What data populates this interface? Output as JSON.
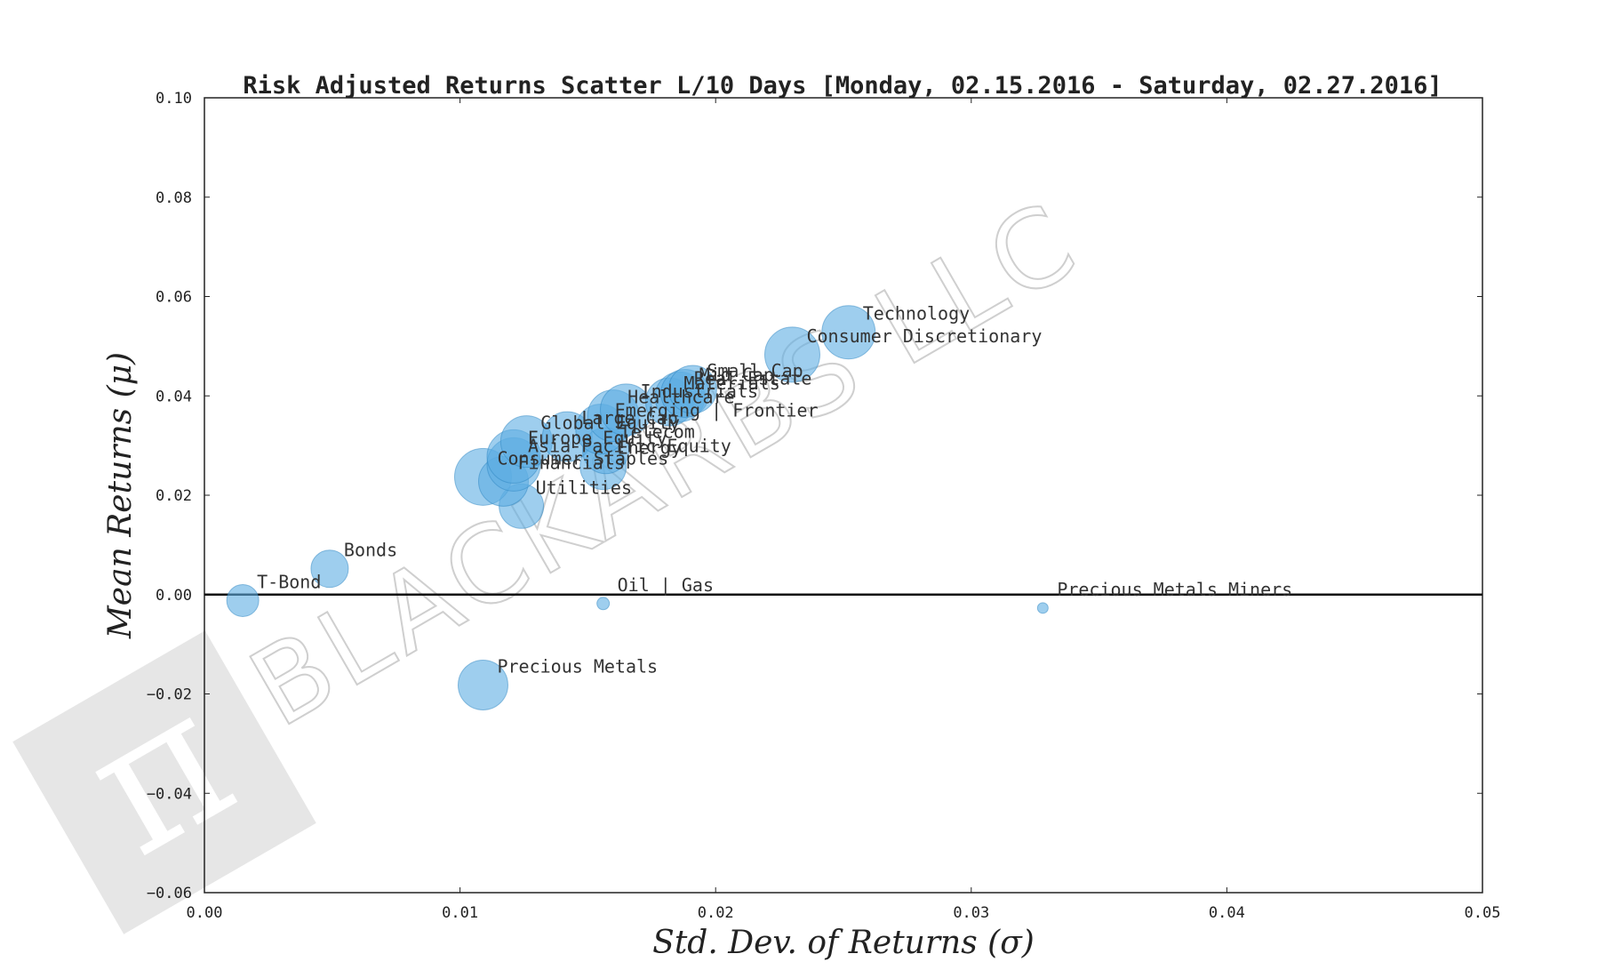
{
  "chart_data": {
    "type": "scatter",
    "title": "Risk Adjusted Returns Scatter L/10 Days [Monday, 02.15.2016 - Saturday, 02.27.2016]",
    "xlabel": "Std.  Dev.  of  Returns   (σ)",
    "ylabel": "Mean  Returns   (μ)",
    "xlim": [
      0.0,
      0.05
    ],
    "ylim": [
      -0.06,
      0.1
    ],
    "xticks": [
      "0.00",
      "0.01",
      "0.02",
      "0.03",
      "0.04",
      "0.05"
    ],
    "yticks": [
      "−0.06",
      "−0.04",
      "−0.02",
      "0.00",
      "0.02",
      "0.04",
      "0.06",
      "0.08",
      "0.10"
    ],
    "zero_line": 0.0,
    "bubble_color": "#5dade2",
    "watermark": "BLACKARBS LLC",
    "points": [
      {
        "label": "T-Bond",
        "x": 0.0015,
        "y": -0.0012,
        "size": 18
      },
      {
        "label": "Bonds",
        "x": 0.0049,
        "y": 0.0052,
        "size": 21
      },
      {
        "label": "Oil | Gas",
        "x": 0.0156,
        "y": -0.0018,
        "size": 7
      },
      {
        "label": "Precious Metals Miners",
        "x": 0.0328,
        "y": -0.0027,
        "size": 6
      },
      {
        "label": "Precious Metals",
        "x": 0.0109,
        "y": -0.0182,
        "size": 28
      },
      {
        "label": "Utilities",
        "x": 0.0124,
        "y": 0.0178,
        "size": 25
      },
      {
        "label": "Consumer Staples",
        "x": 0.0109,
        "y": 0.0237,
        "size": 32
      },
      {
        "label": "Financials",
        "x": 0.0117,
        "y": 0.0228,
        "size": 28
      },
      {
        "label": "Asia-Pacific Equity",
        "x": 0.0121,
        "y": 0.0262,
        "size": 30
      },
      {
        "label": "Europe Equity",
        "x": 0.0121,
        "y": 0.0278,
        "size": 30
      },
      {
        "label": "Energy",
        "x": 0.0156,
        "y": 0.0258,
        "size": 26
      },
      {
        "label": "Global Equity",
        "x": 0.0126,
        "y": 0.0308,
        "size": 29
      },
      {
        "label": "Large Cap",
        "x": 0.0142,
        "y": 0.0318,
        "size": 28
      },
      {
        "label": "Telecom",
        "x": 0.0157,
        "y": 0.029,
        "size": 26
      },
      {
        "label": "Emerging | Frontier",
        "x": 0.0155,
        "y": 0.0333,
        "size": 28
      },
      {
        "label": "Healthcare",
        "x": 0.016,
        "y": 0.036,
        "size": 29
      },
      {
        "label": "Industrials",
        "x": 0.0165,
        "y": 0.0372,
        "size": 29
      },
      {
        "label": "Materials",
        "x": 0.0182,
        "y": 0.0388,
        "size": 27
      },
      {
        "label": "Real Estate",
        "x": 0.0186,
        "y": 0.0398,
        "size": 28
      },
      {
        "label": "Mid Cap",
        "x": 0.0188,
        "y": 0.0405,
        "size": 27
      },
      {
        "label": "Small Cap",
        "x": 0.0191,
        "y": 0.0413,
        "size": 27
      },
      {
        "label": "Consumer Discretionary",
        "x": 0.023,
        "y": 0.0483,
        "size": 31
      },
      {
        "label": "Technology",
        "x": 0.0252,
        "y": 0.0528,
        "size": 30
      }
    ]
  }
}
